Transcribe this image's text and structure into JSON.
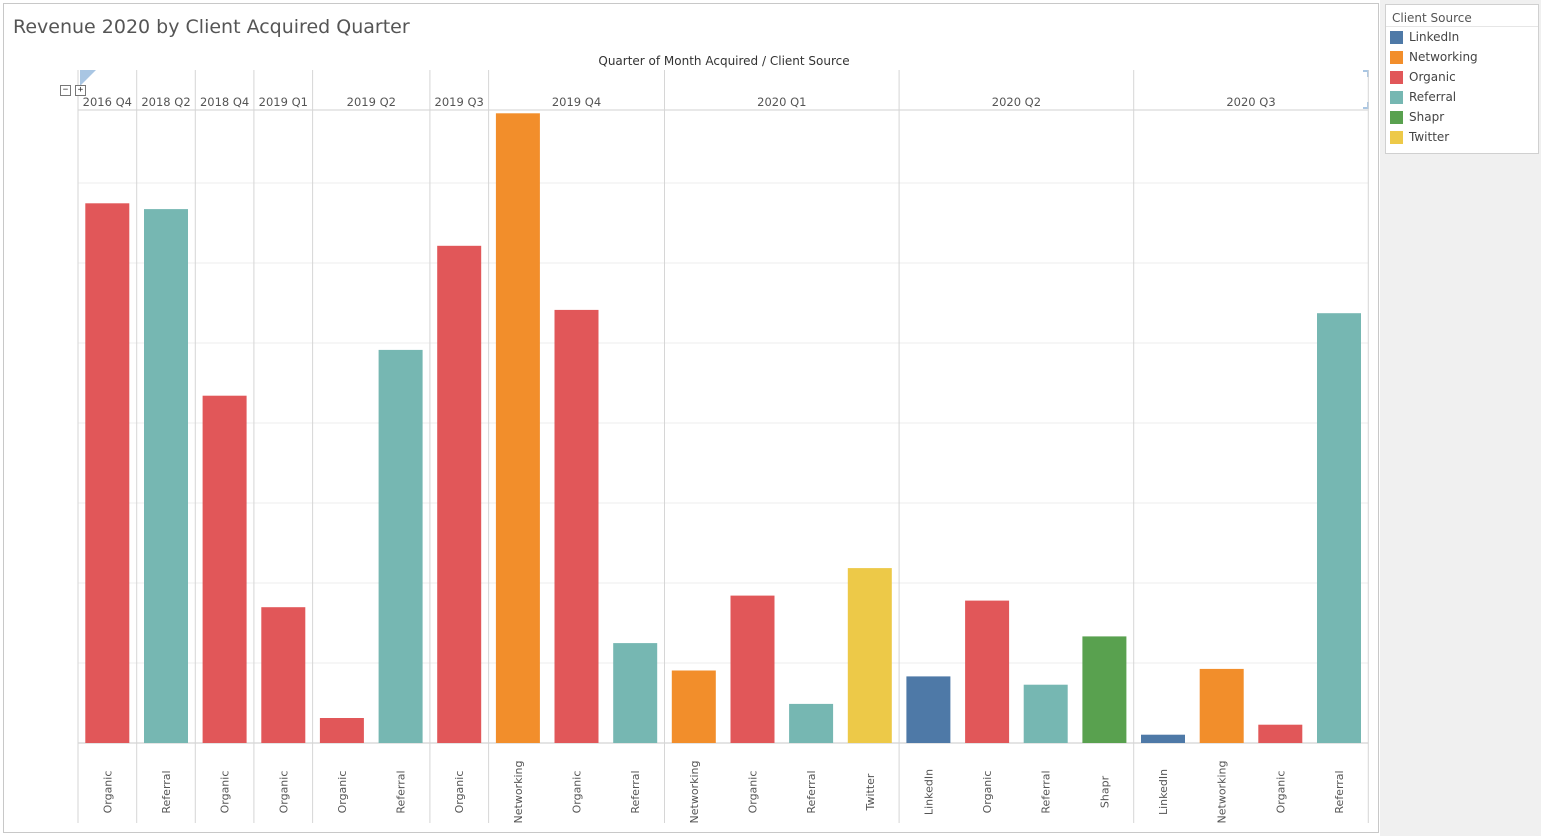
{
  "title": "Revenue 2020 by Client Acquired Quarter",
  "legend": {
    "title": "Client Source",
    "items": [
      {
        "label": "LinkedIn",
        "color": "#4e79a7"
      },
      {
        "label": "Networking",
        "color": "#f28e2b"
      },
      {
        "label": "Organic",
        "color": "#e15759"
      },
      {
        "label": "Referral",
        "color": "#76b7b2"
      },
      {
        "label": "Shapr",
        "color": "#59a14f"
      },
      {
        "label": "Twitter",
        "color": "#edc948"
      }
    ]
  },
  "controls": {
    "collapse": "−",
    "expand": "+"
  },
  "chart_data": {
    "type": "bar",
    "title": "Revenue 2020 by Client Acquired Quarter",
    "header_label": "Quarter of Month Acquired  /  Client Source",
    "grid": true,
    "ylim": [
      0,
      760
    ],
    "groups": [
      {
        "label": "2016 Q4",
        "bars": [
          {
            "source": "Organic",
            "value": 648
          }
        ]
      },
      {
        "label": "2018 Q2",
        "bars": [
          {
            "source": "Referral",
            "value": 641
          }
        ]
      },
      {
        "label": "2018 Q4",
        "bars": [
          {
            "source": "Organic",
            "value": 417
          }
        ]
      },
      {
        "label": "2019 Q1",
        "bars": [
          {
            "source": "Organic",
            "value": 163
          }
        ]
      },
      {
        "label": "2019 Q2",
        "bars": [
          {
            "source": "Organic",
            "value": 30
          },
          {
            "source": "Referral",
            "value": 472
          }
        ]
      },
      {
        "label": "2019 Q3",
        "bars": [
          {
            "source": "Organic",
            "value": 597
          }
        ]
      },
      {
        "label": "2019 Q4",
        "bars": [
          {
            "source": "Networking",
            "value": 756
          },
          {
            "source": "Organic",
            "value": 520
          },
          {
            "source": "Referral",
            "value": 120
          }
        ]
      },
      {
        "label": "2020 Q1",
        "bars": [
          {
            "source": "Networking",
            "value": 87
          },
          {
            "source": "Organic",
            "value": 177
          },
          {
            "source": "Referral",
            "value": 47
          },
          {
            "source": "Twitter",
            "value": 210
          }
        ]
      },
      {
        "label": "2020 Q2",
        "bars": [
          {
            "source": "LinkedIn",
            "value": 80
          },
          {
            "source": "Organic",
            "value": 171
          },
          {
            "source": "Referral",
            "value": 70
          },
          {
            "source": "Shapr",
            "value": 128
          }
        ]
      },
      {
        "label": "2020 Q3",
        "bars": [
          {
            "source": "LinkedIn",
            "value": 10
          },
          {
            "source": "Networking",
            "value": 89
          },
          {
            "source": "Organic",
            "value": 22
          },
          {
            "source": "Referral",
            "value": 516
          }
        ]
      }
    ]
  }
}
